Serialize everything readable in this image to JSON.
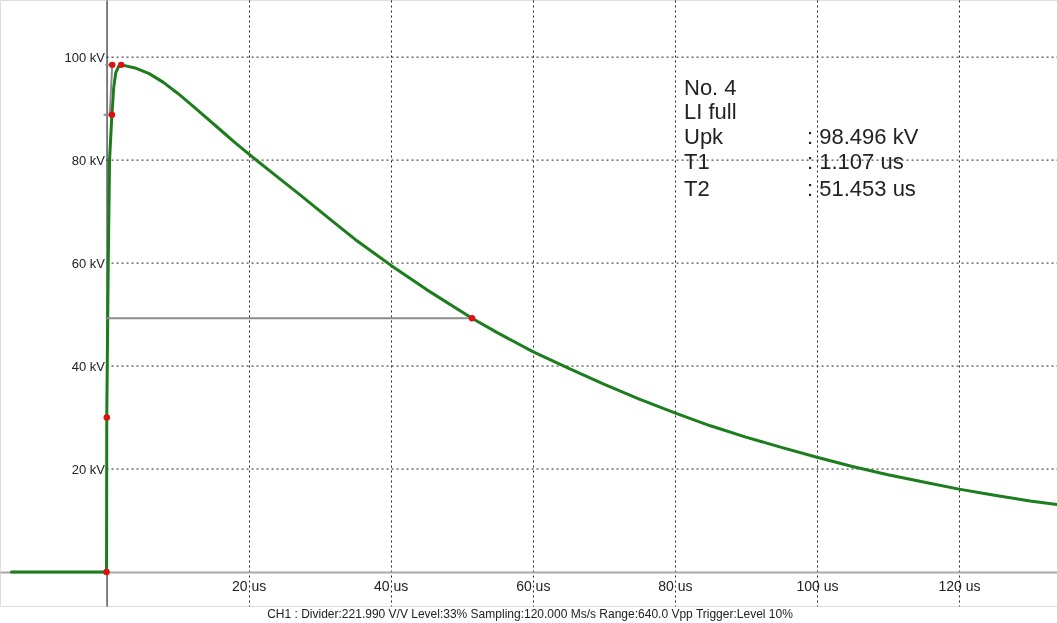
{
  "chart_data": {
    "type": "line",
    "xlim": [
      -15,
      133.8
    ],
    "ylim": [
      -6.6,
      111.1
    ],
    "xticks": [
      {
        "value": 20,
        "label": "20 us"
      },
      {
        "value": 40,
        "label": "40 us"
      },
      {
        "value": 60,
        "label": "60 us"
      },
      {
        "value": 80,
        "label": "80 us"
      },
      {
        "value": 100,
        "label": "100 us"
      },
      {
        "value": 120,
        "label": "120 us"
      }
    ],
    "yticks": [
      {
        "value": 20,
        "label": "20 kV"
      },
      {
        "value": 40,
        "label": "40 kV"
      },
      {
        "value": 60,
        "label": "60 kV"
      },
      {
        "value": 80,
        "label": "80 kV"
      },
      {
        "value": 100,
        "label": "100 kV"
      }
    ],
    "grid": true,
    "series": [
      {
        "color": "#1b7d1b",
        "x": [
          -13.4,
          -0.1,
          0,
          0.03,
          0.24,
          0.42,
          0.75,
          1.0,
          1.3,
          1.7,
          2.1,
          4,
          6,
          8,
          10,
          12,
          14,
          16,
          18,
          20,
          24,
          27.2,
          31.4,
          35,
          40,
          45,
          51.45,
          55,
          60,
          65,
          70,
          75,
          80,
          85,
          90,
          95,
          100,
          105,
          110,
          115,
          120,
          125,
          130,
          133.8
        ],
        "values": [
          0,
          0,
          0,
          30,
          60,
          80,
          88.8,
          94,
          97,
          98.2,
          98.5,
          97.9,
          96.8,
          95.1,
          93,
          90.7,
          88.3,
          85.9,
          83.5,
          81.2,
          76.8,
          73.3,
          68.6,
          64.6,
          59.6,
          54.9,
          49.3,
          46.5,
          42.8,
          39.6,
          36.5,
          33.6,
          30.9,
          28.4,
          26.2,
          24.2,
          22.3,
          20.5,
          18.9,
          17.5,
          16.1,
          14.9,
          13.8,
          13.1
        ]
      },
      {
        "color": "#8c8c8c",
        "x": [
          0,
          51.45
        ],
        "values": [
          49.3,
          49.3
        ]
      },
      {
        "color": "#8c8c8c",
        "x": [
          -0.05,
          0.8,
          0.45,
          -0.3
        ],
        "values": [
          98.5,
          98.5,
          88.8,
          88.8
        ]
      },
      {
        "type": "scatter",
        "color": "#e01010",
        "marker": "circle",
        "x": [
          0,
          0.03,
          0.75,
          0.8,
          2.07,
          51.45
        ],
        "values": [
          0,
          30,
          88.8,
          98.5,
          98.5,
          49.3
        ]
      }
    ],
    "annotations": [
      "No. 4",
      "LI full",
      "Upk",
      ": 98.496 kV",
      "T1",
      ": 1.107 us",
      "T2",
      ": 51.453 us",
      "CH1 : Divider:221.990 V/V  Level:33%  Sampling:120.000 Ms/s  Range:640.0 Vpp  Trigger:Level 10%"
    ]
  }
}
